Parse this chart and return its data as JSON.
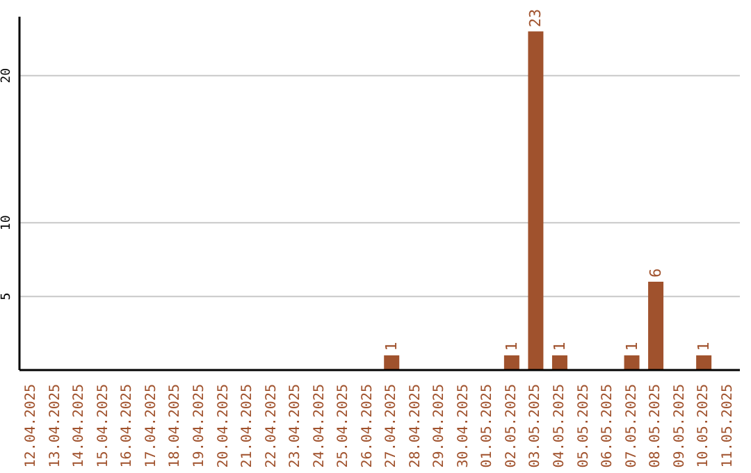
{
  "chart_data": {
    "type": "bar",
    "categories": [
      "12.04.2025",
      "13.04.2025",
      "14.04.2025",
      "15.04.2025",
      "16.04.2025",
      "17.04.2025",
      "18.04.2025",
      "19.04.2025",
      "20.04.2025",
      "21.04.2025",
      "22.04.2025",
      "23.04.2025",
      "24.04.2025",
      "25.04.2025",
      "26.04.2025",
      "27.04.2025",
      "28.04.2025",
      "29.04.2025",
      "30.04.2025",
      "01.05.2025",
      "02.05.2025",
      "03.05.2025",
      "04.05.2025",
      "05.05.2025",
      "06.05.2025",
      "07.05.2025",
      "08.05.2025",
      "09.05.2025",
      "10.05.2025",
      "11.05.2025"
    ],
    "values": [
      0,
      0,
      0,
      0,
      0,
      0,
      0,
      0,
      0,
      0,
      0,
      0,
      0,
      0,
      0,
      1,
      0,
      0,
      0,
      0,
      1,
      23,
      1,
      0,
      0,
      1,
      6,
      0,
      1,
      0
    ],
    "value_labels": [
      null,
      null,
      null,
      null,
      null,
      null,
      null,
      null,
      null,
      null,
      null,
      null,
      null,
      null,
      null,
      "1",
      null,
      null,
      null,
      null,
      "1",
      "23",
      "1",
      null,
      null,
      "1",
      "6",
      null,
      "1",
      null
    ],
    "color": "#a0522d",
    "ylim": [
      0,
      24
    ],
    "yticks": [
      5,
      10,
      20
    ],
    "grid": "y",
    "legend": false
  }
}
